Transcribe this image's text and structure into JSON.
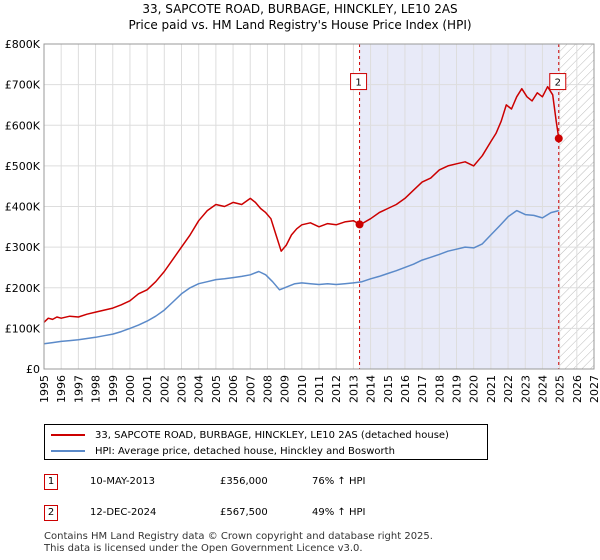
{
  "chart_data": {
    "type": "line",
    "title": "33, SAPCOTE ROAD, BURBAGE, HINCKLEY, LE10 2AS",
    "subtitle": "Price paid vs. HM Land Registry's House Price Index (HPI)",
    "xlim": [
      1995,
      2027
    ],
    "ylim": [
      0,
      800000
    ],
    "x_ticks": [
      1995,
      1996,
      1997,
      1998,
      1999,
      2000,
      2001,
      2002,
      2003,
      2004,
      2005,
      2006,
      2007,
      2008,
      2009,
      2010,
      2011,
      2012,
      2013,
      2014,
      2015,
      2016,
      2017,
      2018,
      2019,
      2020,
      2021,
      2022,
      2023,
      2024,
      2025,
      2026,
      2027
    ],
    "y_ticks": [
      {
        "value": 0,
        "label": "£0"
      },
      {
        "value": 100000,
        "label": "£100K"
      },
      {
        "value": 200000,
        "label": "£200K"
      },
      {
        "value": 300000,
        "label": "£300K"
      },
      {
        "value": 400000,
        "label": "£400K"
      },
      {
        "value": 500000,
        "label": "£500K"
      },
      {
        "value": 600000,
        "label": "£600K"
      },
      {
        "value": 700000,
        "label": "£700K"
      },
      {
        "value": 800000,
        "label": "£800K"
      }
    ],
    "grid": true,
    "shaded_region": {
      "from": 2013.36,
      "to": 2024.95,
      "color": "#e8eaf8"
    },
    "hatched_region": {
      "from": 2024.95,
      "to": 2027
    },
    "series": [
      {
        "name": "33, SAPCOTE ROAD, BURBAGE, HINCKLEY, LE10 2AS (detached house)",
        "color": "#cc0000",
        "x": [
          1995.0,
          1995.25,
          1995.5,
          1995.75,
          1996.0,
          1996.5,
          1997.0,
          1997.5,
          1998.0,
          1998.5,
          1999.0,
          1999.5,
          2000.0,
          2000.5,
          2001.0,
          2001.5,
          2002.0,
          2002.5,
          2003.0,
          2003.5,
          2004.0,
          2004.5,
          2005.0,
          2005.5,
          2006.0,
          2006.5,
          2007.0,
          2007.3,
          2007.6,
          2007.9,
          2008.2,
          2008.5,
          2008.8,
          2009.1,
          2009.4,
          2009.7,
          2010.0,
          2010.5,
          2011.0,
          2011.5,
          2012.0,
          2012.5,
          2013.0,
          2013.36,
          2013.5,
          2014.0,
          2014.5,
          2015.0,
          2015.5,
          2016.0,
          2016.5,
          2017.0,
          2017.5,
          2018.0,
          2018.5,
          2019.0,
          2019.5,
          2020.0,
          2020.5,
          2021.0,
          2021.3,
          2021.6,
          2021.9,
          2022.2,
          2022.5,
          2022.8,
          2023.1,
          2023.4,
          2023.7,
          2024.0,
          2024.3,
          2024.6,
          2024.8,
          2024.95
        ],
        "y": [
          115000,
          125000,
          122000,
          128000,
          125000,
          130000,
          128000,
          135000,
          140000,
          145000,
          150000,
          158000,
          168000,
          185000,
          195000,
          215000,
          240000,
          270000,
          300000,
          330000,
          365000,
          390000,
          405000,
          400000,
          410000,
          405000,
          420000,
          410000,
          395000,
          385000,
          370000,
          330000,
          290000,
          305000,
          330000,
          345000,
          355000,
          360000,
          350000,
          358000,
          355000,
          362000,
          365000,
          356000,
          358000,
          370000,
          385000,
          395000,
          405000,
          420000,
          440000,
          460000,
          470000,
          490000,
          500000,
          505000,
          510000,
          500000,
          525000,
          560000,
          580000,
          610000,
          650000,
          640000,
          670000,
          690000,
          670000,
          660000,
          680000,
          670000,
          695000,
          675000,
          610000,
          567500
        ]
      },
      {
        "name": "HPI: Average price, detached house, Hinckley and Bosworth",
        "color": "#5b8ac9",
        "x": [
          1995.0,
          1995.5,
          1996.0,
          1996.5,
          1997.0,
          1997.5,
          1998.0,
          1998.5,
          1999.0,
          1999.5,
          2000.0,
          2000.5,
          2001.0,
          2001.5,
          2002.0,
          2002.5,
          2003.0,
          2003.5,
          2004.0,
          2004.5,
          2005.0,
          2005.5,
          2006.0,
          2006.5,
          2007.0,
          2007.5,
          2007.9,
          2008.3,
          2008.7,
          2009.0,
          2009.3,
          2009.6,
          2010.0,
          2010.5,
          2011.0,
          2011.5,
          2012.0,
          2012.5,
          2013.0,
          2013.5,
          2014.0,
          2014.5,
          2015.0,
          2015.5,
          2016.0,
          2016.5,
          2017.0,
          2017.5,
          2018.0,
          2018.5,
          2019.0,
          2019.5,
          2020.0,
          2020.5,
          2021.0,
          2021.5,
          2022.0,
          2022.5,
          2023.0,
          2023.5,
          2024.0,
          2024.5,
          2024.95
        ],
        "y": [
          62000,
          65000,
          68000,
          70000,
          72000,
          75000,
          78000,
          82000,
          86000,
          92000,
          100000,
          108000,
          118000,
          130000,
          145000,
          165000,
          185000,
          200000,
          210000,
          215000,
          220000,
          222000,
          225000,
          228000,
          232000,
          240000,
          232000,
          215000,
          195000,
          200000,
          205000,
          210000,
          212000,
          210000,
          208000,
          210000,
          208000,
          210000,
          212000,
          215000,
          222000,
          228000,
          235000,
          242000,
          250000,
          258000,
          268000,
          275000,
          282000,
          290000,
          295000,
          300000,
          298000,
          308000,
          330000,
          352000,
          375000,
          390000,
          380000,
          378000,
          372000,
          385000,
          390000
        ]
      }
    ],
    "sales": [
      {
        "id": "1",
        "x": 2013.36,
        "y": 356000,
        "label_y": 710000
      },
      {
        "id": "2",
        "x": 2024.95,
        "y": 567500,
        "label_y": 710000
      }
    ],
    "legend_position": "below"
  },
  "legend": {
    "items": [
      {
        "label": "33, SAPCOTE ROAD, BURBAGE, HINCKLEY, LE10 2AS (detached house)",
        "color": "#cc0000"
      },
      {
        "label": "HPI: Average price, detached house, Hinckley and Bosworth",
        "color": "#5b8ac9"
      }
    ]
  },
  "sales_table": [
    {
      "id": "1",
      "date": "10-MAY-2013",
      "price": "£356,000",
      "hpi": "76% ↑ HPI"
    },
    {
      "id": "2",
      "date": "12-DEC-2024",
      "price": "£567,500",
      "hpi": "49% ↑ HPI"
    }
  ],
  "footer": {
    "line1": "Contains HM Land Registry data © Crown copyright and database right 2025.",
    "line2": "This data is licensed under the Open Government Licence v3.0."
  }
}
